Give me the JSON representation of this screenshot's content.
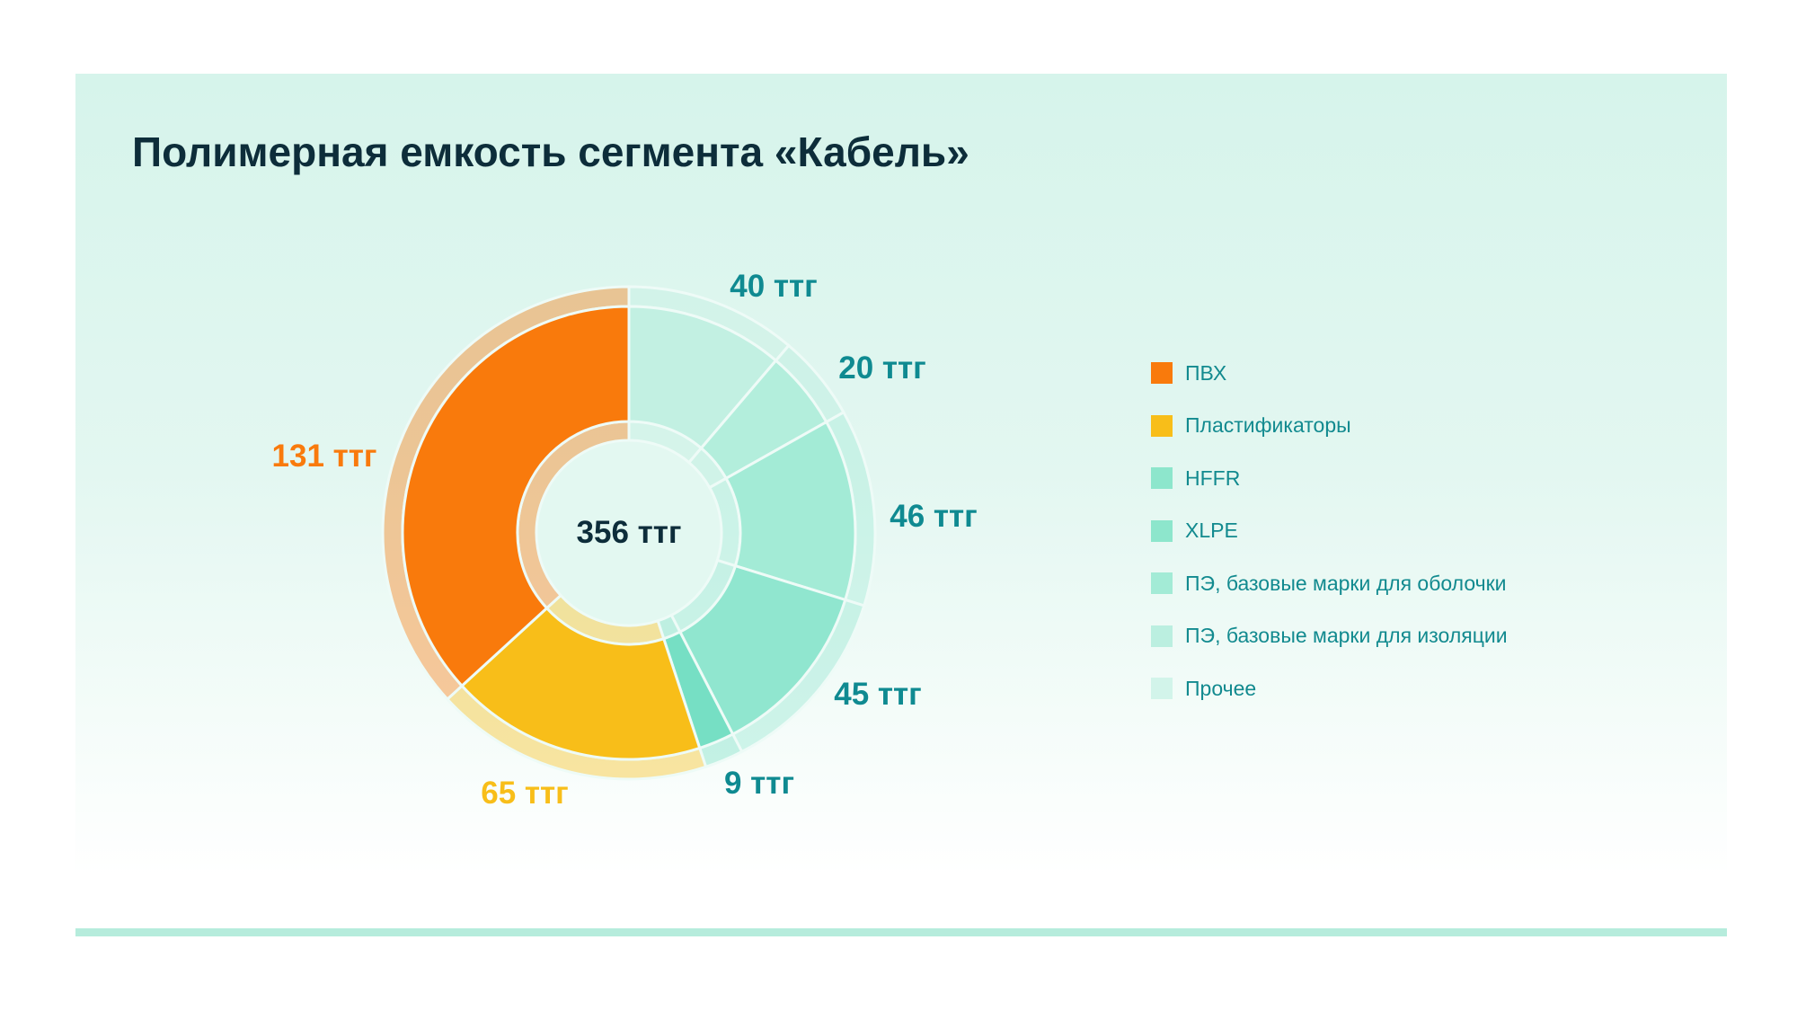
{
  "title": "Полимерная емкость сегмента «Кабель»",
  "chart_data": {
    "type": "pie",
    "variant": "donut",
    "title": "Полимерная емкость сегмента «Кабель»",
    "unit": "ттг",
    "total_label": "356 ттг",
    "total": 356,
    "slices": [
      {
        "name": "Прочее",
        "value": 40,
        "label": "40 ттг",
        "color": "#c2f0e2",
        "label_color": "#0f8a91"
      },
      {
        "name": "ПЭ, базовые марки для изоляции",
        "value": 20,
        "label": "20 ттг",
        "color": "#b3eedc",
        "label_color": "#0f8a91"
      },
      {
        "name": "ПЭ, базовые марки для оболочки",
        "value": 46,
        "label": "46 ттг",
        "color": "#a3ebd6",
        "label_color": "#0f8a91"
      },
      {
        "name": "XLPE",
        "value": 45,
        "label": "45 ттг",
        "color": "#90e6cf",
        "label_color": "#0f8a91"
      },
      {
        "name": "HFFR",
        "value": 9,
        "label": "9 ттг",
        "color": "#76dfc4",
        "label_color": "#0f8a91"
      },
      {
        "name": "Пластификаторы",
        "value": 65,
        "label": "65 ттг",
        "color": "#f8be19",
        "label_color": "#f8be19"
      },
      {
        "name": "ПВХ",
        "value": 131,
        "label": "131 ттг",
        "color": "#f97a0c",
        "label_color": "#f97a0c"
      }
    ],
    "legend": [
      {
        "label": "ПВХ",
        "color": "#f97a0c"
      },
      {
        "label": "Пластификаторы",
        "color": "#f8be19"
      },
      {
        "label": "HFFR",
        "color": "#8de6cc"
      },
      {
        "label": "XLPE",
        "color": "#8de6cc"
      },
      {
        "label": "ПЭ, базовые марки для оболочки",
        "color": "#a3ebd6"
      },
      {
        "label": "ПЭ, базовые марки для изоляции",
        "color": "#bbefe0"
      },
      {
        "label": "Прочее",
        "color": "#d2f4ea"
      }
    ],
    "legend_position": "right"
  }
}
